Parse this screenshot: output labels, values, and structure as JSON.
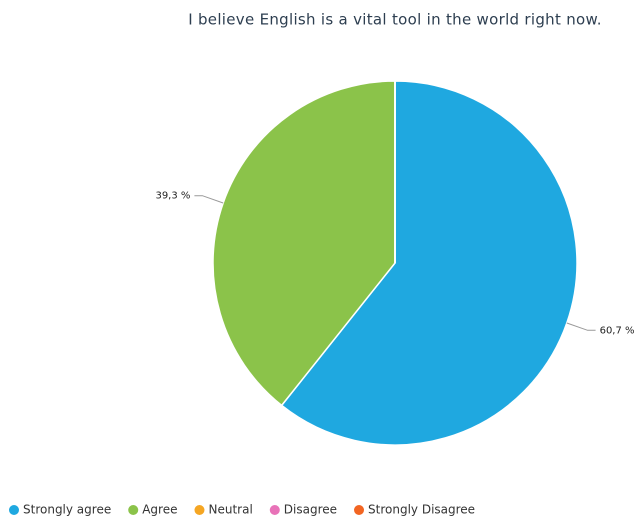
{
  "chart_data": {
    "type": "pie",
    "title": "I believe English is a vital tool in the world right now.",
    "categories": [
      "Strongly agree",
      "Agree",
      "Neutral",
      "Disagree",
      "Strongly Disagree"
    ],
    "values": [
      60.7,
      39.3,
      0,
      0,
      0
    ],
    "value_labels": [
      "60,7 %",
      "39,3 %",
      null,
      null,
      null
    ],
    "colors": [
      "#1fa8e0",
      "#8bc34a",
      "#f5a623",
      "#e872b8",
      "#f26522"
    ],
    "legend": "bottom-left"
  }
}
